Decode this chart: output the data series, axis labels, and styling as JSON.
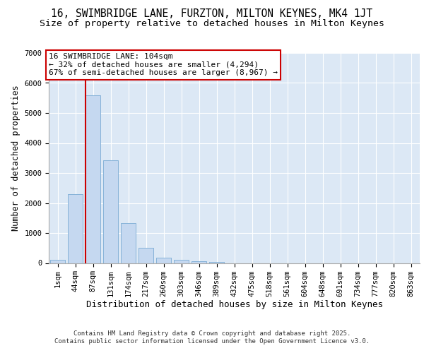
{
  "title1": "16, SWIMBRIDGE LANE, FURZTON, MILTON KEYNES, MK4 1JT",
  "title2": "Size of property relative to detached houses in Milton Keynes",
  "xlabel": "Distribution of detached houses by size in Milton Keynes",
  "ylabel": "Number of detached properties",
  "categories": [
    "1sqm",
    "44sqm",
    "87sqm",
    "131sqm",
    "174sqm",
    "217sqm",
    "260sqm",
    "303sqm",
    "346sqm",
    "389sqm",
    "432sqm",
    "475sqm",
    "518sqm",
    "561sqm",
    "604sqm",
    "648sqm",
    "691sqm",
    "734sqm",
    "777sqm",
    "820sqm",
    "863sqm"
  ],
  "bar_heights": [
    100,
    2300,
    5580,
    3420,
    1340,
    510,
    185,
    105,
    60,
    30,
    0,
    0,
    0,
    0,
    0,
    0,
    0,
    0,
    0,
    0,
    0
  ],
  "bar_color": "#c5d8f0",
  "bar_edge_color": "#7aabd4",
  "background_color": "#dce8f5",
  "grid_color": "#ffffff",
  "vline_color": "#cc0000",
  "vline_x_index": 2,
  "annotation_title": "16 SWIMBRIDGE LANE: 104sqm",
  "annotation_line1": "← 32% of detached houses are smaller (4,294)",
  "annotation_line2": "67% of semi-detached houses are larger (8,967) →",
  "annotation_box_facecolor": "#ffffff",
  "annotation_box_edgecolor": "#cc0000",
  "ylim": [
    0,
    7000
  ],
  "yticks": [
    0,
    1000,
    2000,
    3000,
    4000,
    5000,
    6000,
    7000
  ],
  "footer1": "Contains HM Land Registry data © Crown copyright and database right 2025.",
  "footer2": "Contains public sector information licensed under the Open Government Licence v3.0.",
  "title_fontsize": 10.5,
  "subtitle_fontsize": 9.5,
  "xlabel_fontsize": 9,
  "ylabel_fontsize": 8.5,
  "tick_fontsize": 7.5,
  "annotation_fontsize": 8,
  "footer_fontsize": 6.5
}
